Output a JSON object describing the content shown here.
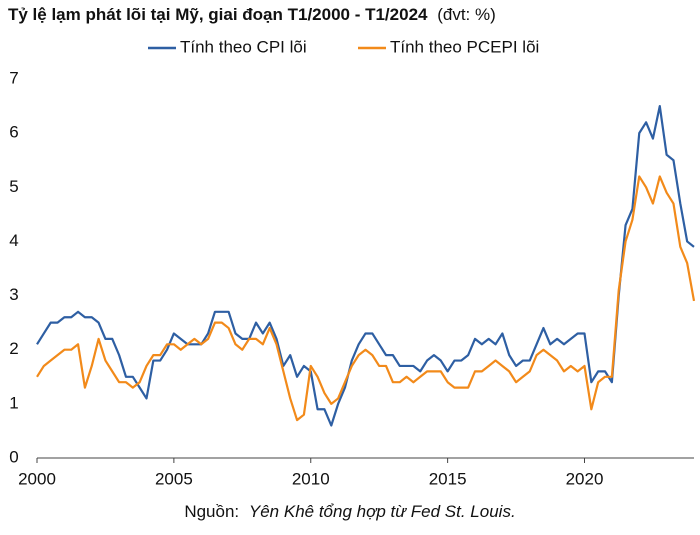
{
  "chart_data": {
    "type": "line",
    "title": "Tỷ lệ lạm phát lõi tại Mỹ, giai đoạn T1/2000 - T1/2024",
    "unit": "(đvt: %)",
    "source": {
      "label": "Nguồn:",
      "text": "Yên Khê tổng hợp từ Fed St. Louis."
    },
    "legend": "top",
    "x": [
      2000,
      2000.25,
      2000.5,
      2000.75,
      2001,
      2001.25,
      2001.5,
      2001.75,
      2002,
      2002.25,
      2002.5,
      2002.75,
      2003,
      2003.25,
      2003.5,
      2003.75,
      2004,
      2004.25,
      2004.5,
      2004.75,
      2005,
      2005.25,
      2005.5,
      2005.75,
      2006,
      2006.25,
      2006.5,
      2006.75,
      2007,
      2007.25,
      2007.5,
      2007.75,
      2008,
      2008.25,
      2008.5,
      2008.75,
      2009,
      2009.25,
      2009.5,
      2009.75,
      2010,
      2010.25,
      2010.5,
      2010.75,
      2011,
      2011.25,
      2011.5,
      2011.75,
      2012,
      2012.25,
      2012.5,
      2012.75,
      2013,
      2013.25,
      2013.5,
      2013.75,
      2014,
      2014.25,
      2014.5,
      2014.75,
      2015,
      2015.25,
      2015.5,
      2015.75,
      2016,
      2016.25,
      2016.5,
      2016.75,
      2017,
      2017.25,
      2017.5,
      2017.75,
      2018,
      2018.25,
      2018.5,
      2018.75,
      2019,
      2019.25,
      2019.5,
      2019.75,
      2020,
      2020.25,
      2020.5,
      2020.75,
      2021,
      2021.25,
      2021.5,
      2021.75,
      2022,
      2022.25,
      2022.5,
      2022.75,
      2023,
      2023.25,
      2023.5,
      2023.75,
      2024
    ],
    "series": [
      {
        "name": "Tính theo CPI lõi",
        "color": "#2e5fa3",
        "values": [
          2.1,
          2.3,
          2.5,
          2.5,
          2.6,
          2.6,
          2.7,
          2.6,
          2.6,
          2.5,
          2.2,
          2.2,
          1.9,
          1.5,
          1.5,
          1.3,
          1.1,
          1.8,
          1.8,
          2.0,
          2.3,
          2.2,
          2.1,
          2.1,
          2.1,
          2.3,
          2.7,
          2.7,
          2.7,
          2.3,
          2.2,
          2.2,
          2.5,
          2.3,
          2.5,
          2.2,
          1.7,
          1.9,
          1.5,
          1.7,
          1.6,
          0.9,
          0.9,
          0.6,
          1.0,
          1.3,
          1.8,
          2.1,
          2.3,
          2.3,
          2.1,
          1.9,
          1.9,
          1.7,
          1.7,
          1.7,
          1.6,
          1.8,
          1.9,
          1.8,
          1.6,
          1.8,
          1.8,
          1.9,
          2.2,
          2.1,
          2.2,
          2.1,
          2.3,
          1.9,
          1.7,
          1.8,
          1.8,
          2.1,
          2.4,
          2.1,
          2.2,
          2.1,
          2.2,
          2.3,
          2.3,
          1.4,
          1.6,
          1.6,
          1.4,
          3.0,
          4.3,
          4.6,
          6.0,
          6.2,
          5.9,
          6.5,
          5.6,
          5.5,
          4.7,
          4.0,
          3.9
        ]
      },
      {
        "name": "Tính theo PCEPI lõi",
        "color": "#f28a1a",
        "values": [
          1.5,
          1.7,
          1.8,
          1.9,
          2.0,
          2.0,
          2.1,
          1.3,
          1.7,
          2.2,
          1.8,
          1.6,
          1.4,
          1.4,
          1.3,
          1.4,
          1.7,
          1.9,
          1.9,
          2.1,
          2.1,
          2.0,
          2.1,
          2.2,
          2.1,
          2.2,
          2.5,
          2.5,
          2.4,
          2.1,
          2.0,
          2.2,
          2.2,
          2.1,
          2.4,
          2.1,
          1.6,
          1.1,
          0.7,
          0.8,
          1.7,
          1.5,
          1.2,
          1.0,
          1.1,
          1.4,
          1.7,
          1.9,
          2.0,
          1.9,
          1.7,
          1.7,
          1.4,
          1.4,
          1.5,
          1.4,
          1.5,
          1.6,
          1.6,
          1.6,
          1.4,
          1.3,
          1.3,
          1.3,
          1.6,
          1.6,
          1.7,
          1.8,
          1.7,
          1.6,
          1.4,
          1.5,
          1.6,
          1.9,
          2.0,
          1.9,
          1.8,
          1.6,
          1.7,
          1.6,
          1.7,
          0.9,
          1.4,
          1.5,
          1.5,
          3.1,
          4.0,
          4.4,
          5.2,
          5.0,
          4.7,
          5.2,
          4.9,
          4.7,
          3.9,
          3.6,
          2.9
        ]
      }
    ],
    "xlim": [
      2000,
      2024
    ],
    "xticks": [
      2000,
      2005,
      2010,
      2015,
      2020
    ],
    "ylim": [
      0,
      7
    ],
    "yticks": [
      0,
      1,
      2,
      3,
      4,
      5,
      6,
      7
    ]
  }
}
